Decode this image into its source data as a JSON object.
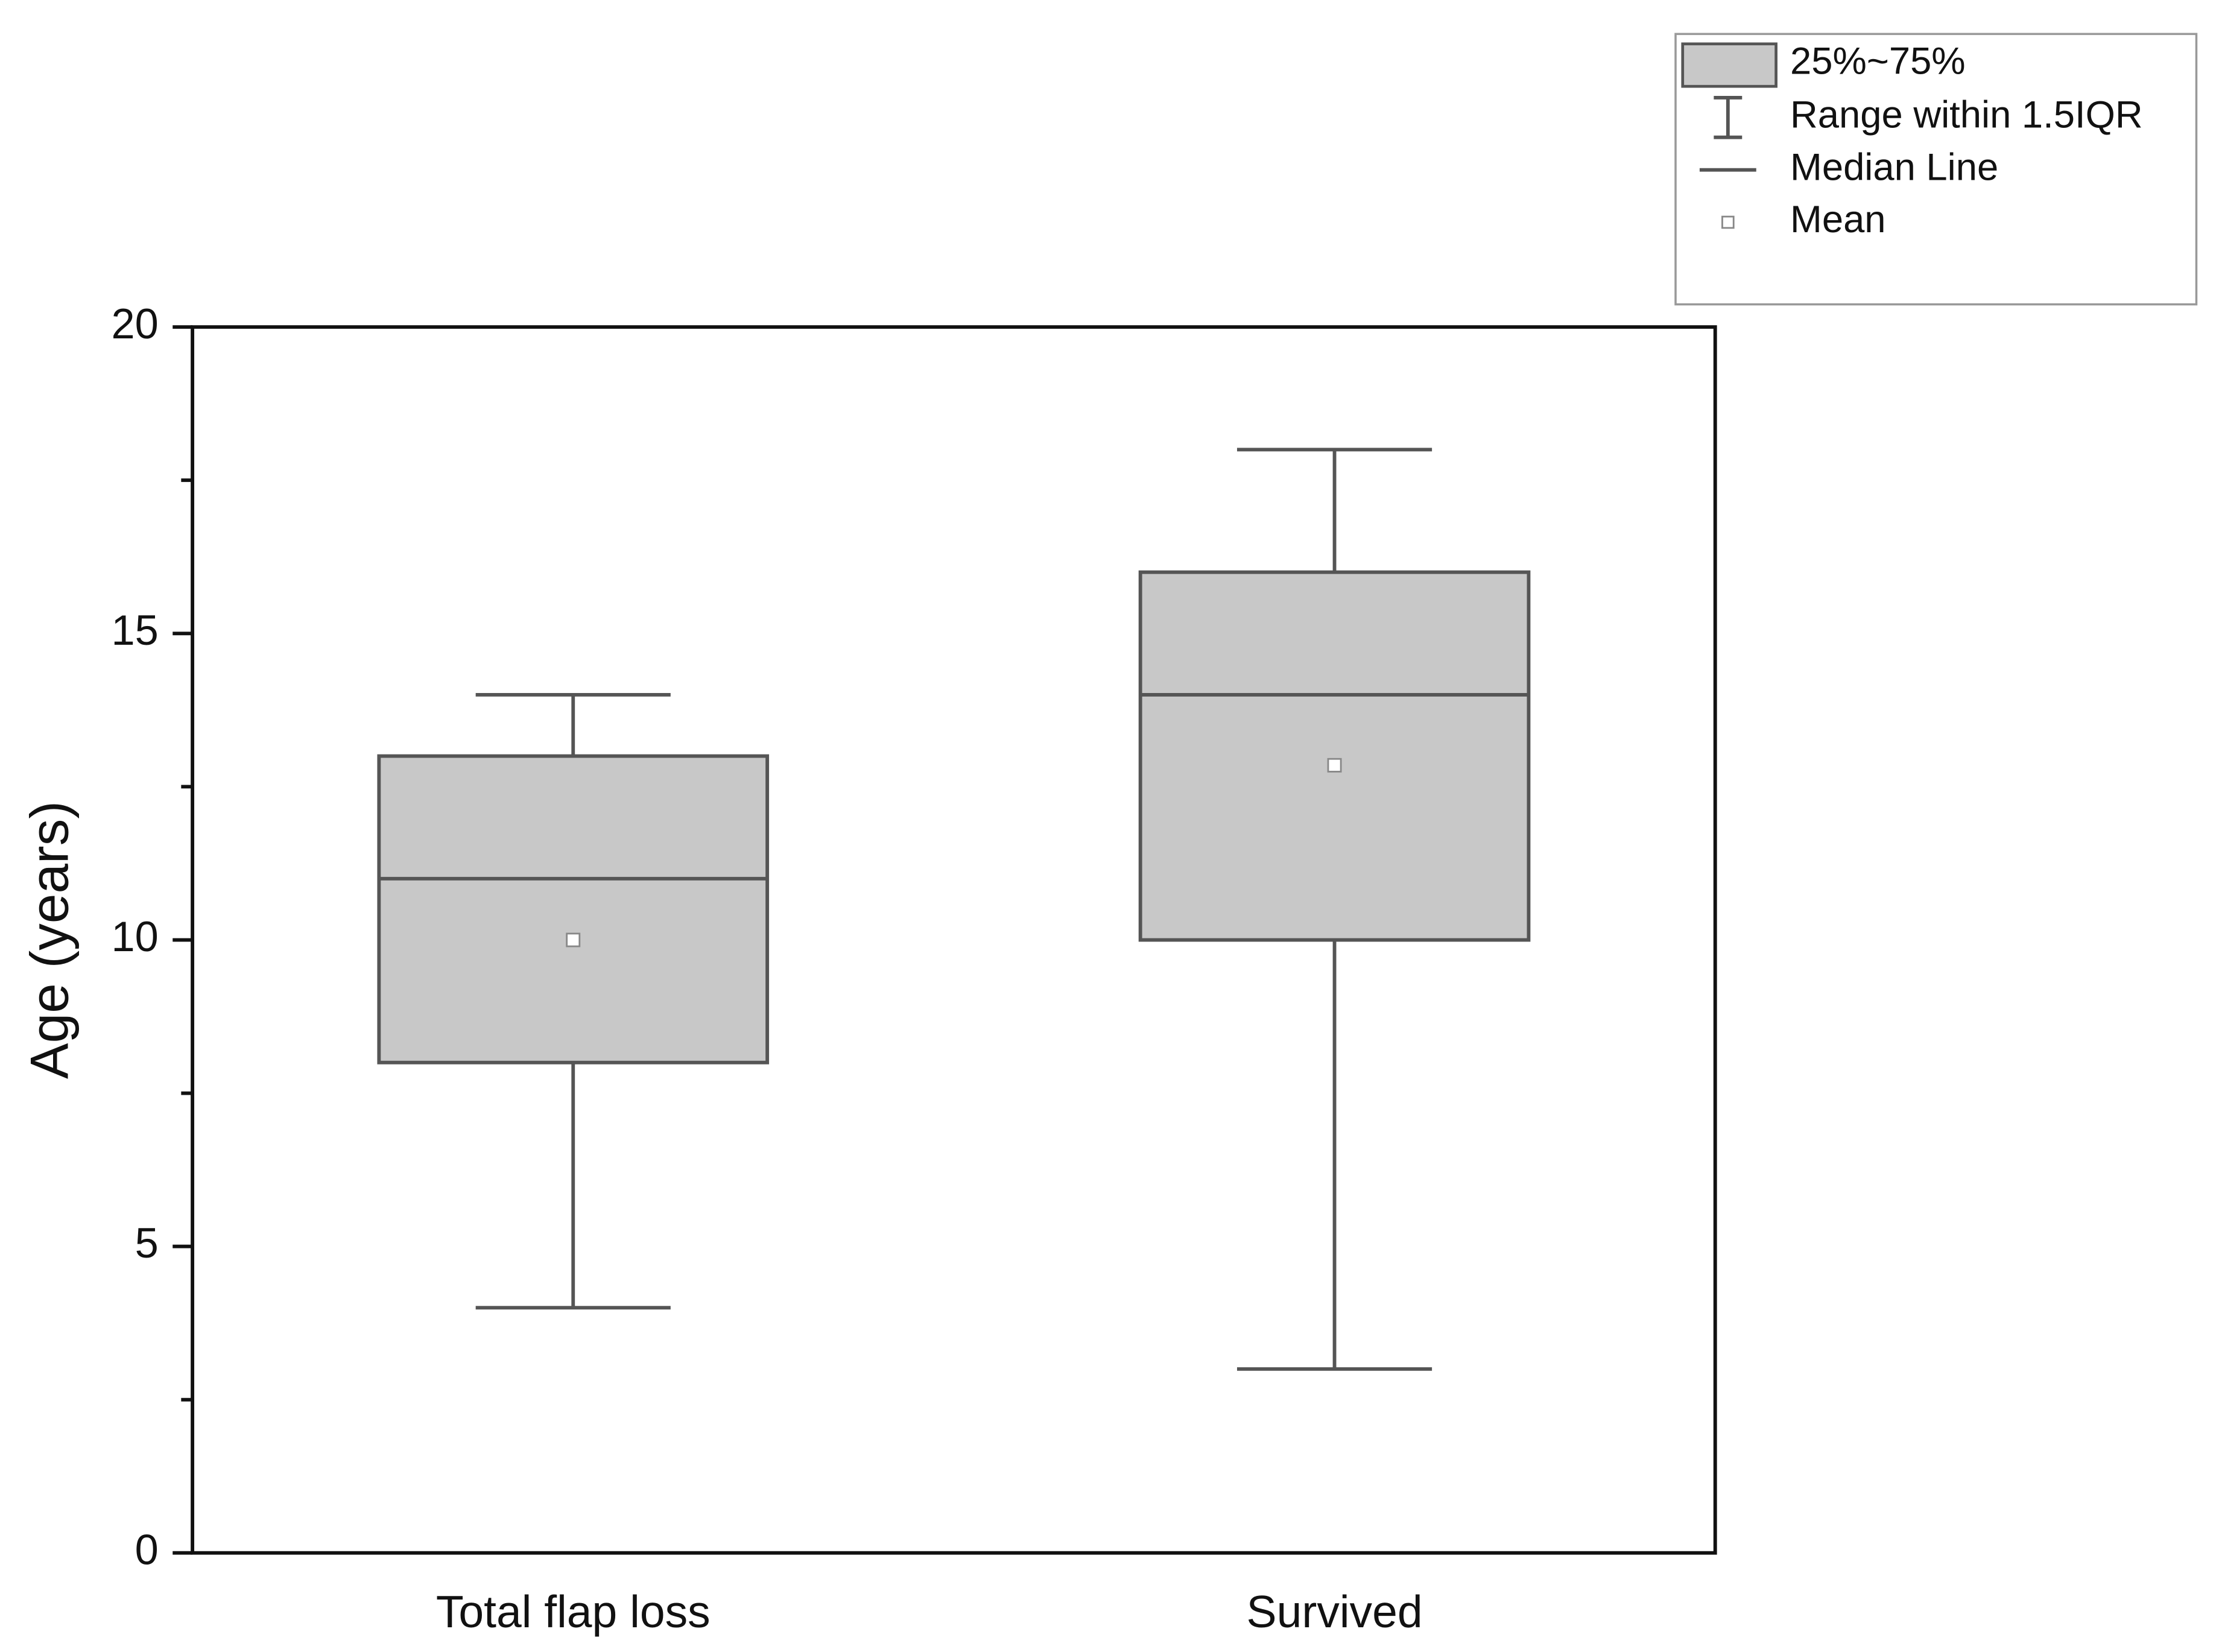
{
  "chart_data": {
    "type": "box",
    "ylabel": "Age (years)",
    "categories": [
      "Total flap loss",
      "Survived"
    ],
    "boxes": [
      {
        "min": 4,
        "q1": 8,
        "median": 11,
        "q3": 13,
        "max": 14,
        "mean": 10
      },
      {
        "min": 3,
        "q1": 10,
        "median": 14,
        "q3": 16,
        "max": 18,
        "mean": 12.85
      }
    ],
    "color": "#c8c8c8",
    "ylim": [
      0,
      20
    ],
    "yticks": [
      0,
      5,
      10,
      15,
      20
    ],
    "yminorticks": [
      2.5,
      7.5,
      12.5,
      17.5
    ],
    "legend": {
      "box": "25%~75%",
      "whisker": "Range within 1.5IQR",
      "median": "Median Line",
      "mean": "Mean"
    },
    "legend_position": "upper right"
  }
}
